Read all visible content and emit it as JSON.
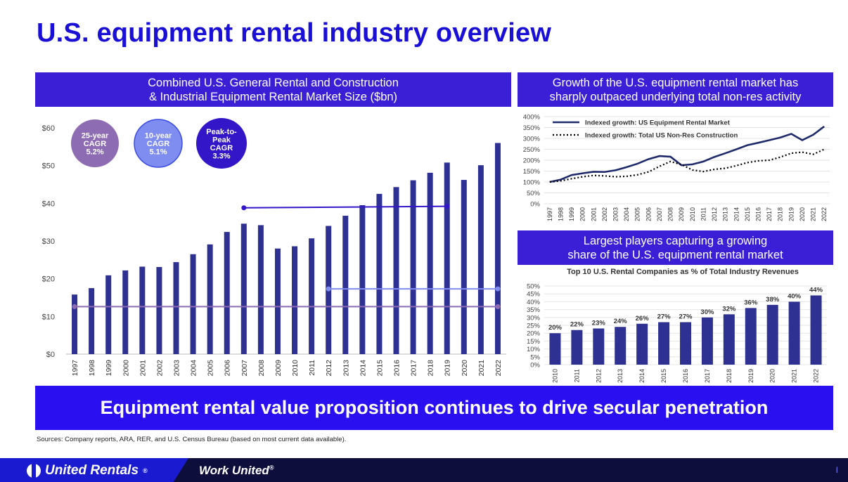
{
  "page": {
    "title": "U.S. equipment rental industry overview",
    "bottom_banner": "Equipment rental value proposition continues to drive secular penetration",
    "sources": "Sources: Company reports, ARA, RER, and U.S. Census Bureau (based on most current data available).",
    "brand": "United Rentals",
    "brand_mark": "®",
    "tagline": "Work United",
    "tagline_mark": "®",
    "page_mark": "I"
  },
  "panels": {
    "left_header": "Combined U.S. General Rental and Construction\n& Industrial Equipment Rental Market Size ($bn)",
    "top_right_header": "Growth of the U.S. equipment rental market has\nsharply outpaced underlying total non-res activity",
    "bottom_right_header": "Largest players capturing a growing\nshare of the U.S. equipment rental market"
  },
  "colors": {
    "bar": "#2e3192",
    "banner": "#3b1fd6",
    "cagr25": "#8e6cb3",
    "cagr10": "#7f8cf0",
    "peak": "#3316c8",
    "line_rental": "#1f2a6b",
    "line_nonres": "#000000"
  },
  "chart_data": [
    {
      "type": "bar",
      "title": "",
      "categories": [
        "1997",
        "1998",
        "1999",
        "2000",
        "2001",
        "2002",
        "2003",
        "2004",
        "2005",
        "2006",
        "2007",
        "2008",
        "2009",
        "2010",
        "2011",
        "2012",
        "2013",
        "2014",
        "2015",
        "2016",
        "2017",
        "2018",
        "2019",
        "2020",
        "2021",
        "2022"
      ],
      "values": [
        15.8,
        17.5,
        20.9,
        22.2,
        23.2,
        23.1,
        24.4,
        26.5,
        29.1,
        32.4,
        34.6,
        34.2,
        28.0,
        28.6,
        30.7,
        34.0,
        36.7,
        39.5,
        42.5,
        44.3,
        46.1,
        48.1,
        50.8,
        46.2,
        50.1,
        56.0
      ],
      "ylim": [
        0,
        60
      ],
      "yticks": [
        "$0",
        "$10",
        "$20",
        "$30",
        "$40",
        "$50",
        "$60"
      ],
      "annotations": [
        {
          "label": "25-year\nCAGR\n5.2%",
          "from": "1997",
          "to": "2022",
          "level": 12.6
        },
        {
          "label": "10-year\nCAGR\n5.1%",
          "from": "2012",
          "to": "2022",
          "level": 17.3
        },
        {
          "label": "Peak-to-\nPeak\nCAGR\n3.3%",
          "from": "2007",
          "to": "2019",
          "level": 38.8,
          "level_end": 39.2
        }
      ]
    },
    {
      "type": "line",
      "title": "",
      "x": [
        "1997",
        "1998",
        "1999",
        "2000",
        "2001",
        "2002",
        "2003",
        "2004",
        "2005",
        "2006",
        "2007",
        "2008",
        "2009",
        "2010",
        "2011",
        "2012",
        "2013",
        "2014",
        "2015",
        "2016",
        "2017",
        "2018",
        "2019",
        "2020",
        "2021",
        "2022"
      ],
      "ylim": [
        0,
        400
      ],
      "yticks": [
        "0%",
        "50%",
        "100%",
        "150%",
        "200%",
        "250%",
        "300%",
        "350%",
        "400%"
      ],
      "legend": "top-left",
      "series": [
        {
          "name": "Indexed growth: US Equipment Rental Market",
          "style": "solid",
          "values": [
            100,
            111,
            132,
            140,
            147,
            146,
            154,
            168,
            184,
            205,
            219,
            216,
            177,
            181,
            194,
            215,
            232,
            250,
            269,
            280,
            292,
            304,
            321,
            292,
            317,
            355
          ]
        },
        {
          "name": "Indexed growth: Total US Non-Res Construction",
          "style": "dotted",
          "values": [
            100,
            105,
            115,
            124,
            130,
            128,
            124,
            126,
            133,
            146,
            172,
            194,
            180,
            155,
            148,
            158,
            163,
            175,
            189,
            197,
            200,
            214,
            232,
            237,
            227,
            250
          ]
        }
      ]
    },
    {
      "type": "bar",
      "title": "Top 10 U.S. Rental Companies as % of Total Industry Revenues",
      "categories": [
        "2010",
        "2011",
        "2012",
        "2013",
        "2014",
        "2015",
        "2016",
        "2017",
        "2018",
        "2019",
        "2020",
        "2021",
        "2022"
      ],
      "values": [
        20,
        22,
        23,
        24,
        26,
        27,
        27,
        30,
        32,
        36,
        38,
        40,
        44
      ],
      "labels": [
        "20%",
        "22%",
        "23%",
        "24%",
        "26%",
        "27%",
        "27%",
        "30%",
        "32%",
        "36%",
        "38%",
        "40%",
        "44%"
      ],
      "ylim": [
        0,
        50
      ],
      "yticks": [
        "0%",
        "5%",
        "10%",
        "15%",
        "20%",
        "25%",
        "30%",
        "35%",
        "40%",
        "45%",
        "50%"
      ]
    }
  ]
}
